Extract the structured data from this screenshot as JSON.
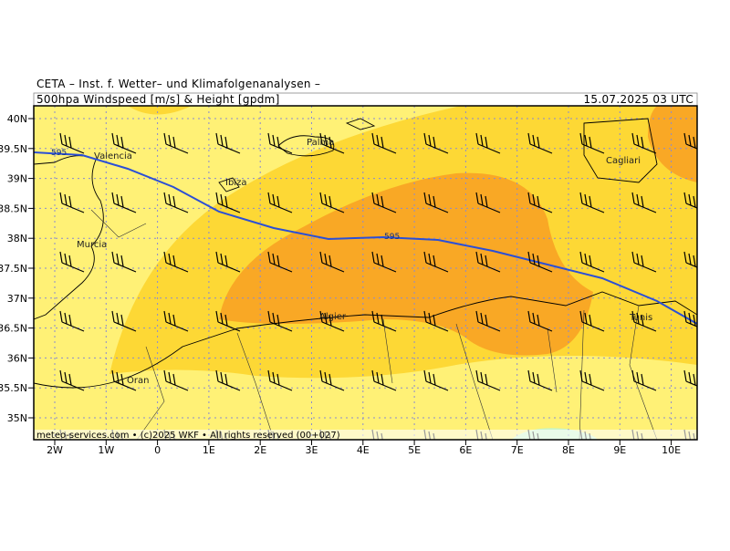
{
  "header": {
    "institute": "CETA – Inst. f. Wetter– und Klimafolgenanalysen –",
    "title": "500hpa Windspeed [m/s] & Height [gpdm]",
    "valid_time": "15.07.2025 03 UTC"
  },
  "footer": "meteo-services.com • (c)2025 WKF • All rights reserved (00+027)",
  "lat_labels": [
    "40N",
    "39.5N",
    "39N",
    "38.5N",
    "38N",
    "37.5N",
    "37N",
    "36.5N",
    "36N",
    "35.5N",
    "35N"
  ],
  "lon_labels": [
    "2W",
    "1W",
    "0",
    "1E",
    "2E",
    "3E",
    "4E",
    "5E",
    "6E",
    "7E",
    "8E",
    "9E",
    "10E"
  ],
  "places": [
    "Valencia",
    "Palma",
    "Ibiza",
    "Murcia",
    "Cagliari",
    "Algier",
    "Oran",
    "Tunis"
  ],
  "contour_labels": [
    "595",
    "595"
  ]
}
